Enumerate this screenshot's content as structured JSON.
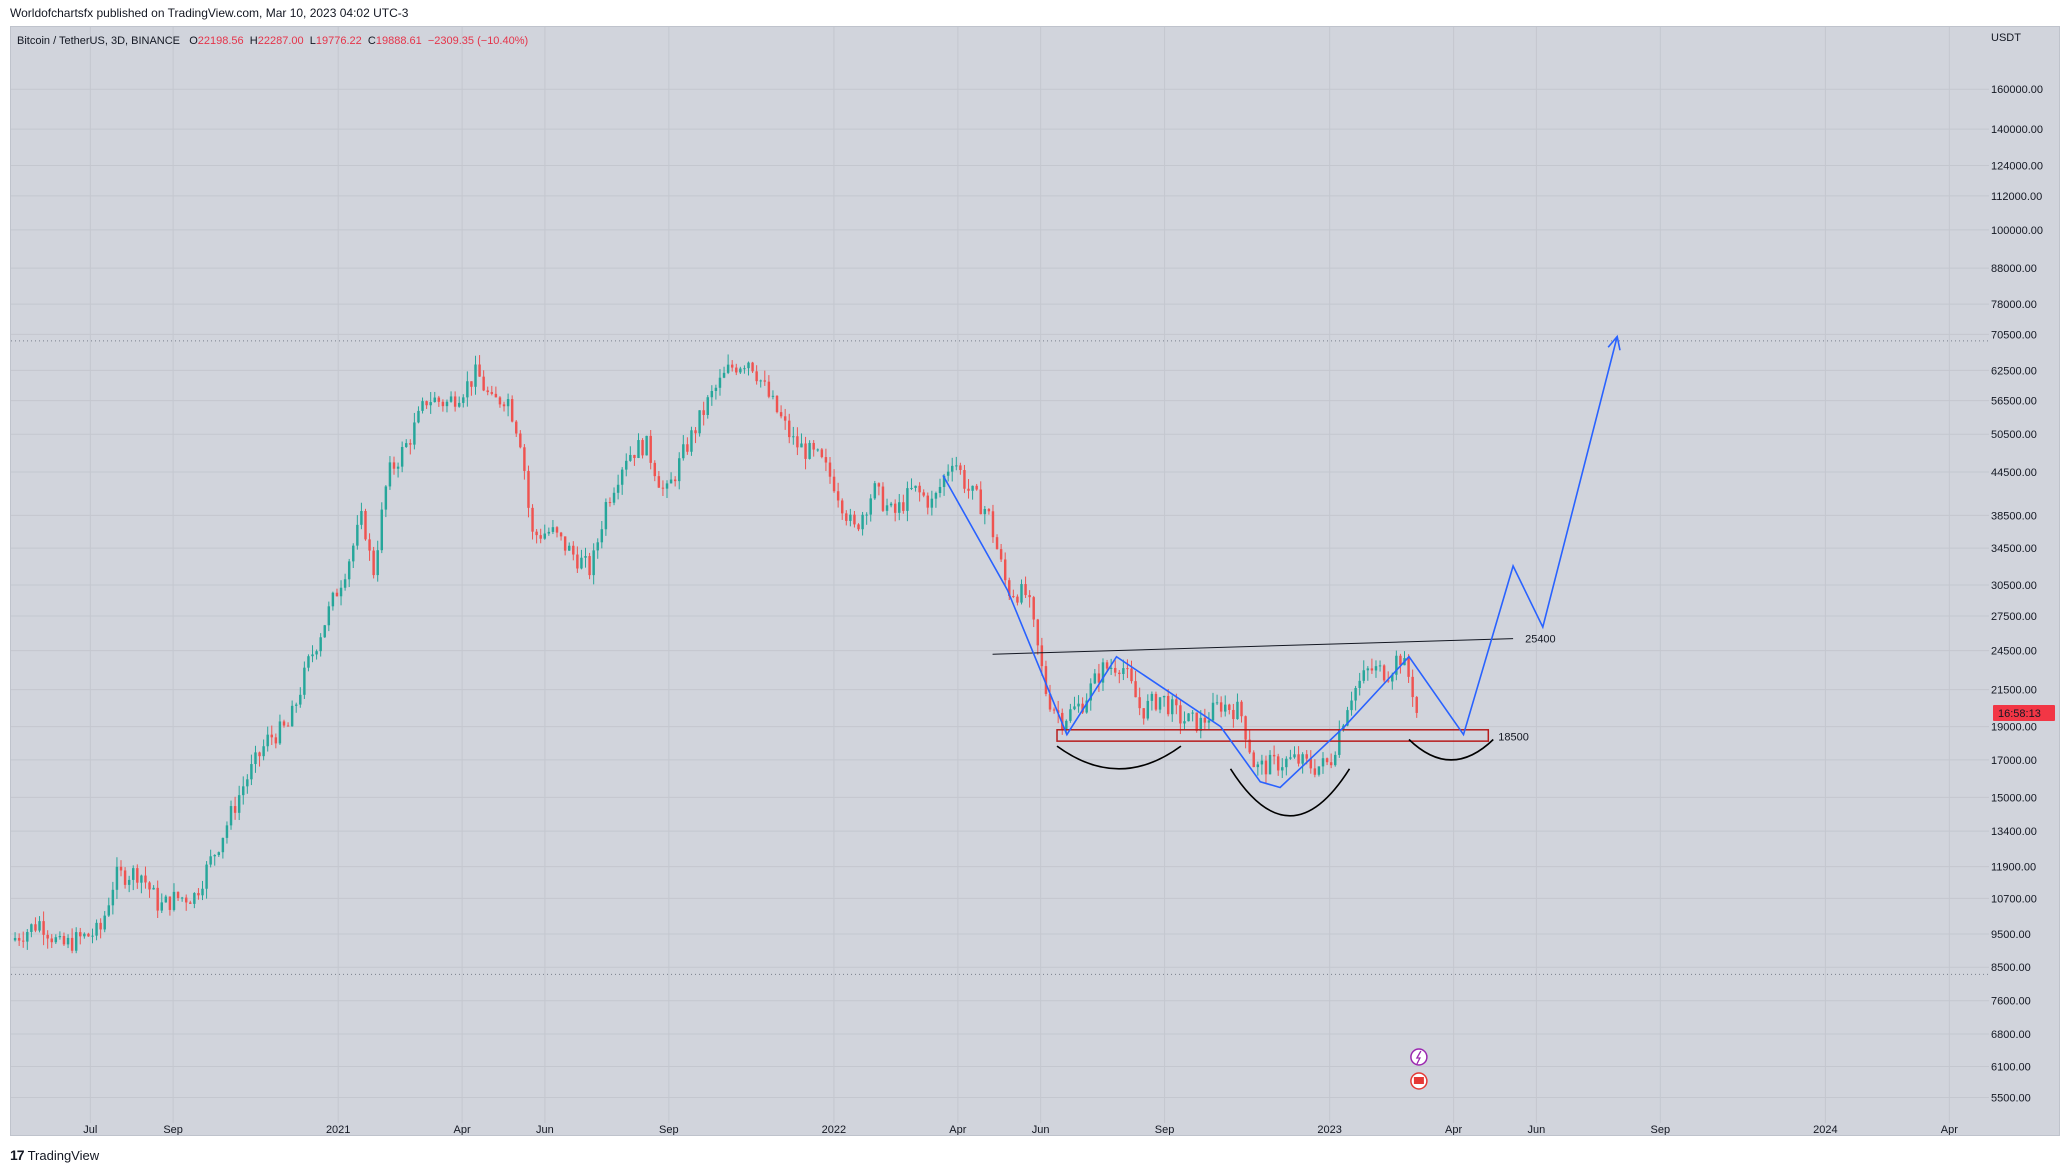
{
  "header": {
    "published": "Worldofchartsfx published on TradingView.com, Mar 10, 2023 04:02 UTC-3"
  },
  "legend": {
    "symbol": "Bitcoin / TetherUS, 3D, BINANCE",
    "o_label": "O",
    "o": "22198.56",
    "h_label": "H",
    "h": "22287.00",
    "l_label": "L",
    "l": "19776.22",
    "c_label": "C",
    "c": "19888.61",
    "change": "−2309.35 (−10.40%)"
  },
  "footer": {
    "brand": "TradingView"
  },
  "colors": {
    "up": "#26a69a",
    "down": "#ef5350",
    "projection": "#2962ff",
    "bg": "#d1d4dc",
    "price_tag": "#f23645"
  },
  "chart_data": {
    "type": "candlestick",
    "scale": "log",
    "currency": "USDT",
    "price_ticks": [
      "160000.00",
      "140000.00",
      "124000.00",
      "112000.00",
      "100000.00",
      "88000.00",
      "78000.00",
      "70500.00",
      "62500.00",
      "56500.00",
      "50500.00",
      "44500.00",
      "38500.00",
      "34500.00",
      "30500.00",
      "27500.00",
      "24500.00",
      "21500.00",
      "19000.00",
      "17000.00",
      "15000.00",
      "13400.00",
      "11900.00",
      "10700.00",
      "9500.00",
      "8500.00",
      "7600.00",
      "6800.00",
      "6100.00",
      "5500.00"
    ],
    "time_labels": [
      "Jul",
      "Sep",
      "2021",
      "Apr",
      "Jun",
      "Sep",
      "2022",
      "Apr",
      "Jun",
      "Sep",
      "2023",
      "Apr",
      "Jun",
      "Sep",
      "2024",
      "Apr"
    ],
    "time_positions": [
      2020.5,
      2020.667,
      2021.0,
      2021.25,
      2021.417,
      2021.667,
      2022.0,
      2022.25,
      2022.417,
      2022.667,
      2023.0,
      2023.25,
      2023.417,
      2023.667,
      2024.0,
      2024.25
    ],
    "x_range": [
      2020.34,
      2024.33
    ],
    "y_range": [
      5050,
      197000
    ],
    "current_price_tag": "16:58:13",
    "current_price": 19888.61,
    "ath_line": 69000,
    "low_line": 8300,
    "price_path": [
      [
        2020.34,
        9300
      ],
      [
        2020.4,
        9900
      ],
      [
        2020.44,
        9100
      ],
      [
        2020.47,
        9300
      ],
      [
        2020.52,
        9600
      ],
      [
        2020.55,
        11500
      ],
      [
        2020.6,
        11700
      ],
      [
        2020.64,
        10400
      ],
      [
        2020.67,
        10700
      ],
      [
        2020.71,
        10800
      ],
      [
        2020.76,
        12900
      ],
      [
        2020.81,
        15700
      ],
      [
        2020.86,
        18300
      ],
      [
        2020.9,
        19000
      ],
      [
        2020.94,
        23500
      ],
      [
        2020.99,
        29000
      ],
      [
        2021.02,
        33000
      ],
      [
        2021.05,
        38500
      ],
      [
        2021.07,
        31500
      ],
      [
        2021.1,
        44000
      ],
      [
        2021.14,
        49000
      ],
      [
        2021.18,
        57000
      ],
      [
        2021.22,
        56000
      ],
      [
        2021.26,
        59500
      ],
      [
        2021.28,
        62000
      ],
      [
        2021.31,
        56000
      ],
      [
        2021.34,
        57500
      ],
      [
        2021.37,
        49000
      ],
      [
        2021.39,
        36000
      ],
      [
        2021.43,
        36500
      ],
      [
        2021.47,
        34000
      ],
      [
        2021.51,
        32000
      ],
      [
        2021.54,
        40000
      ],
      [
        2021.58,
        47000
      ],
      [
        2021.62,
        49000
      ],
      [
        2021.66,
        41000
      ],
      [
        2021.7,
        48000
      ],
      [
        2021.75,
        57000
      ],
      [
        2021.79,
        63000
      ],
      [
        2021.83,
        65000
      ],
      [
        2021.87,
        57000
      ],
      [
        2021.92,
        49000
      ],
      [
        2021.97,
        46500
      ],
      [
        2022.0,
        43000
      ],
      [
        2022.04,
        36500
      ],
      [
        2022.08,
        42000
      ],
      [
        2022.12,
        38500
      ],
      [
        2022.16,
        42000
      ],
      [
        2022.2,
        40000
      ],
      [
        2022.24,
        47000
      ],
      [
        2022.27,
        42000
      ],
      [
        2022.31,
        39000
      ],
      [
        2022.35,
        30000
      ],
      [
        2022.39,
        29500
      ],
      [
        2022.43,
        21000
      ],
      [
        2022.46,
        19500
      ],
      [
        2022.5,
        20500
      ],
      [
        2022.54,
        23000
      ],
      [
        2022.58,
        23500
      ],
      [
        2022.62,
        20000
      ],
      [
        2022.66,
        21000
      ],
      [
        2022.7,
        19500
      ],
      [
        2022.74,
        19200
      ],
      [
        2022.78,
        20500
      ],
      [
        2022.82,
        20000
      ],
      [
        2022.85,
        16500
      ],
      [
        2022.89,
        16800
      ],
      [
        2022.93,
        17000
      ],
      [
        2022.97,
        16600
      ],
      [
        2023.0,
        16800
      ],
      [
        2023.04,
        21000
      ],
      [
        2023.08,
        23000
      ],
      [
        2023.12,
        22800
      ],
      [
        2023.14,
        24200
      ],
      [
        2023.16,
        22400
      ],
      [
        2023.18,
        19889
      ]
    ],
    "projection_path": [
      [
        2022.22,
        44000
      ],
      [
        2022.35,
        30000
      ],
      [
        2022.47,
        18500
      ],
      [
        2022.57,
        24000
      ],
      [
        2022.78,
        19000
      ],
      [
        2022.86,
        15800
      ],
      [
        2022.9,
        15500
      ],
      [
        2023.03,
        19000
      ],
      [
        2023.16,
        24000
      ],
      [
        2023.27,
        18500
      ],
      [
        2023.37,
        32500
      ],
      [
        2023.43,
        26500
      ],
      [
        2023.58,
        70000
      ]
    ],
    "resistance_line": {
      "from": [
        2022.32,
        24200
      ],
      "to": [
        2023.37,
        25500
      ],
      "label": "25400"
    },
    "support_zone": {
      "from_x": 2022.45,
      "to_x": 2023.32,
      "top": 18800,
      "bottom": 18100,
      "label": "18500"
    },
    "shoulders": [
      {
        "x": [
          2022.45,
          2022.7
        ],
        "top": 17800,
        "bottom": 16500
      },
      {
        "x": [
          2022.8,
          2023.04
        ],
        "top": 16500,
        "bottom": 14100
      },
      {
        "x": [
          2023.16,
          2023.33
        ],
        "top": 18200,
        "bottom": 17000
      }
    ]
  }
}
